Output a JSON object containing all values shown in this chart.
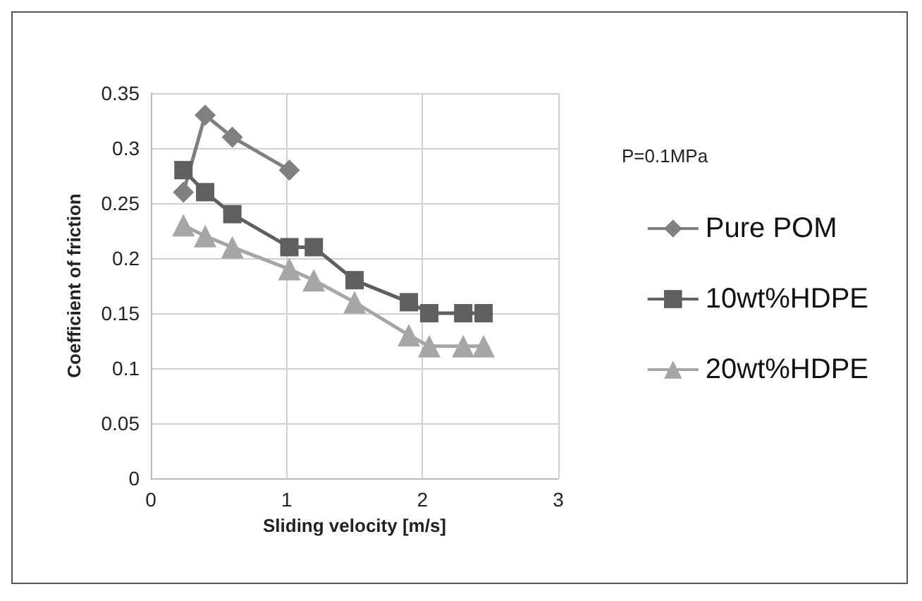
{
  "chart_data": {
    "type": "line",
    "xlabel": "Sliding velocity [m/s]",
    "ylabel": "Coefficient of friction",
    "annotations": [
      "P=0.1MPa"
    ],
    "series": [
      {
        "name": "Pure POM",
        "color": "#808080",
        "marker": "diamond",
        "x": [
          0.24,
          0.4,
          0.6,
          1.02
        ],
        "values": [
          0.26,
          0.33,
          0.31,
          0.28
        ]
      },
      {
        "name": "10wt%HDPE",
        "color": "#5f5f5f",
        "marker": "square",
        "x": [
          0.24,
          0.4,
          0.6,
          1.02,
          1.2,
          1.5,
          1.9,
          2.05,
          2.3,
          2.45
        ],
        "values": [
          0.28,
          0.26,
          0.24,
          0.21,
          0.21,
          0.18,
          0.16,
          0.15,
          0.15,
          0.15
        ]
      },
      {
        "name": "20wt%HDPE",
        "color": "#a6a6a6",
        "marker": "triangle",
        "x": [
          0.24,
          0.4,
          0.6,
          1.02,
          1.2,
          1.5,
          1.9,
          2.05,
          2.3,
          2.45
        ],
        "values": [
          0.23,
          0.22,
          0.21,
          0.19,
          0.18,
          0.16,
          0.13,
          0.12,
          0.12,
          0.12
        ]
      }
    ],
    "xlim": [
      0,
      3
    ],
    "xticks": [
      0,
      1,
      2,
      3
    ],
    "ylim": [
      0,
      0.35
    ],
    "yticks": [
      0,
      0.05,
      0.1,
      0.15,
      0.2,
      0.25,
      0.3,
      0.35
    ],
    "grid": true,
    "legend": "right"
  }
}
